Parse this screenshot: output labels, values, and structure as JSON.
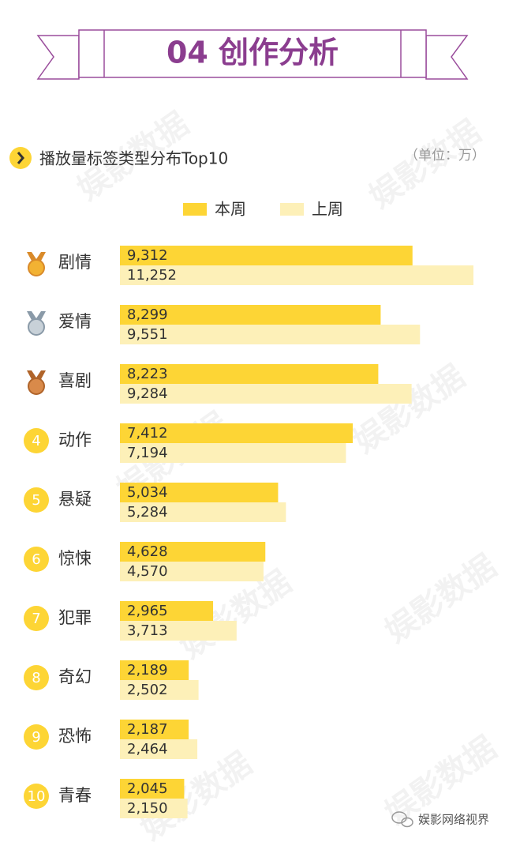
{
  "header": {
    "title": "04 创作分析"
  },
  "watermark": "娱影数据",
  "footer": "娱影网络视界",
  "chart_data": {
    "type": "bar",
    "orientation": "horizontal",
    "title": "播放量标签类型分布Top10",
    "unit": "（单位：万）",
    "categories": [
      "剧情",
      "爱情",
      "喜剧",
      "动作",
      "悬疑",
      "惊悚",
      "犯罪",
      "奇幻",
      "恐怖",
      "青春"
    ],
    "ranks": [
      null,
      null,
      null,
      4,
      5,
      6,
      7,
      8,
      9,
      10
    ],
    "series": [
      {
        "name": "本周",
        "color": "#fdd535",
        "values": [
          9312,
          8299,
          8223,
          7412,
          5034,
          4628,
          2965,
          2189,
          2187,
          2045
        ],
        "value_labels": [
          "9,312",
          "8,299",
          "8,223",
          "7,412",
          "5,034",
          "4,628",
          "2,965",
          "2,189",
          "2,187",
          "2,045"
        ]
      },
      {
        "name": "上周",
        "color": "#fdf0b8",
        "values": [
          11252,
          9551,
          9284,
          7194,
          5284,
          4570,
          3713,
          2502,
          2464,
          2150
        ],
        "value_labels": [
          "11,252",
          "9,551",
          "9,284",
          "7,194",
          "5,284",
          "4,570",
          "3,713",
          "2,502",
          "2,464",
          "2,150"
        ]
      }
    ],
    "legend": "top"
  }
}
